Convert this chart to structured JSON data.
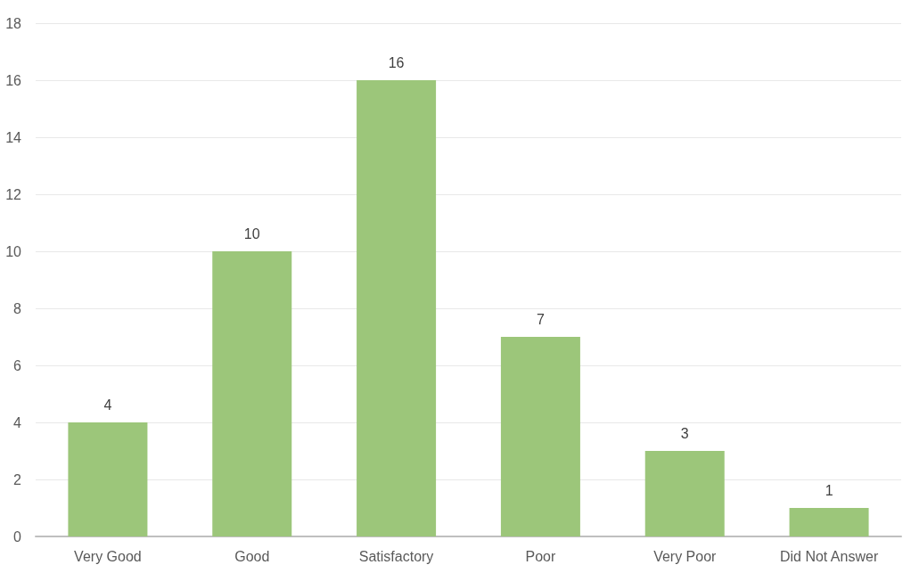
{
  "chart_data": {
    "type": "bar",
    "categories": [
      "Very Good",
      "Good",
      "Satisfactory",
      "Poor",
      "Very Poor",
      "Did Not Answer"
    ],
    "values": [
      4,
      10,
      16,
      7,
      3,
      1
    ],
    "color": "#9cc67a",
    "ylim": [
      0,
      18
    ],
    "yticks": [
      0,
      2,
      4,
      6,
      8,
      10,
      12,
      14,
      16,
      18
    ],
    "grid": "y",
    "data_labels": true
  }
}
